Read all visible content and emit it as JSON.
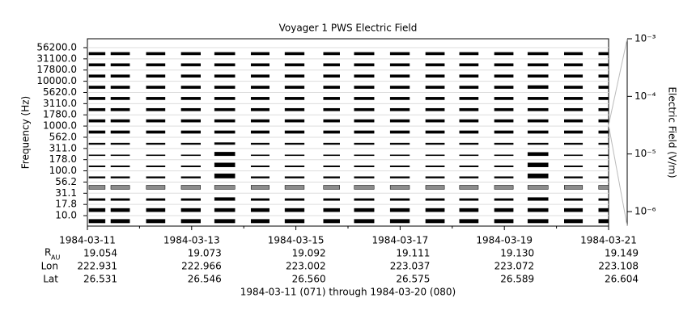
{
  "chart_data": {
    "type": "stacked-spectrum",
    "title": "Voyager 1 PWS Electric Field",
    "y_label": "Frequency (Hz)",
    "y2_label": "Electric Field (V/m)",
    "footer": "1984-03-11 (071) through 1984-03-20 (080)",
    "xlim": [
      0,
      10
    ],
    "xticks": [
      {
        "value": 0,
        "label": "1984-03-11"
      },
      {
        "value": 2,
        "label": "1984-03-13"
      },
      {
        "value": 4,
        "label": "1984-03-15"
      },
      {
        "value": 6,
        "label": "1984-03-17"
      },
      {
        "value": 8,
        "label": "1984-03-19"
      },
      {
        "value": 10,
        "label": "1984-03-21"
      }
    ],
    "xminor": [
      1,
      3,
      5,
      7,
      9
    ],
    "y2lim": [
      5.6e-07,
      0.001
    ],
    "y2scale": "log",
    "y2ticks": [
      {
        "value": 1e-06,
        "label": "10⁻⁶"
      },
      {
        "value": 1e-05,
        "label": "10⁻⁵"
      },
      {
        "value": 0.0001,
        "label": "10⁻⁴"
      },
      {
        "value": 0.001,
        "label": "10⁻³"
      }
    ],
    "segments": [
      [
        0.03,
        0.34
      ],
      [
        0.45,
        0.81
      ],
      [
        1.13,
        1.49
      ],
      [
        1.8,
        2.17
      ],
      [
        2.44,
        2.83
      ],
      [
        3.14,
        3.49
      ],
      [
        3.79,
        4.16
      ],
      [
        4.53,
        4.84
      ],
      [
        5.12,
        5.5
      ],
      [
        5.81,
        6.18
      ],
      [
        6.49,
        6.85
      ],
      [
        7.14,
        7.5
      ],
      [
        7.81,
        8.17
      ],
      [
        8.45,
        8.84
      ],
      [
        9.15,
        9.5
      ],
      [
        9.81,
        10.0
      ]
    ],
    "series": [
      {
        "name": "56200.0",
        "color": "#000000",
        "values": [
          3e-06,
          3e-06,
          3e-06,
          3e-06,
          3e-06,
          3e-06,
          3e-06,
          3e-06,
          3e-06,
          3e-06,
          3e-06,
          3e-06,
          3e-06,
          3e-06,
          3e-06,
          3e-06
        ]
      },
      {
        "name": "31100.0",
        "color": "#000000",
        "values": [
          3e-06,
          3e-06,
          3e-06,
          3e-06,
          3e-06,
          3e-06,
          3e-06,
          3e-06,
          3e-06,
          3e-06,
          3e-06,
          3e-06,
          3e-06,
          3e-06,
          3e-06,
          3e-06
        ]
      },
      {
        "name": "17800.0",
        "color": "#000000",
        "values": [
          3e-06,
          3e-06,
          3e-06,
          3e-06,
          3e-06,
          3e-06,
          3e-06,
          3e-06,
          3e-06,
          3e-06,
          3e-06,
          3e-06,
          3e-06,
          3e-06,
          3e-06,
          3e-06
        ]
      },
      {
        "name": "10000.0",
        "color": "#000000",
        "values": [
          3e-06,
          3e-06,
          3e-06,
          3e-06,
          3e-06,
          3e-06,
          3e-06,
          3e-06,
          3e-06,
          3e-06,
          3e-06,
          3e-06,
          3e-06,
          4e-06,
          3e-06,
          3e-06
        ]
      },
      {
        "name": "5620.0",
        "color": "#000000",
        "values": [
          3e-06,
          3e-06,
          3e-06,
          3e-06,
          3e-06,
          3e-06,
          3e-06,
          3e-06,
          3e-06,
          3e-06,
          3e-06,
          3e-06,
          3e-06,
          3e-06,
          3e-06,
          3e-06
        ]
      },
      {
        "name": "3110.0",
        "color": "#000000",
        "values": [
          3e-06,
          3e-06,
          3e-06,
          3e-06,
          3e-06,
          3e-06,
          3e-06,
          3e-06,
          3e-06,
          3e-06,
          3e-06,
          3e-06,
          3e-06,
          3e-06,
          3e-06,
          3e-06
        ]
      },
      {
        "name": "1780.0",
        "color": "#000000",
        "values": [
          3e-06,
          3e-06,
          3e-06,
          3e-06,
          3e-06,
          3e-06,
          3e-06,
          3e-06,
          3e-06,
          3e-06,
          3e-06,
          3e-06,
          3e-06,
          3e-06,
          3e-06,
          3e-06
        ]
      },
      {
        "name": "1000.0",
        "color": "#000000",
        "values": [
          3e-06,
          3e-06,
          3e-06,
          3e-06,
          3e-06,
          3e-06,
          3e-06,
          3e-06,
          3e-06,
          3e-06,
          3e-06,
          3e-06,
          3e-06,
          3e-06,
          3e-06,
          3e-06
        ]
      },
      {
        "name": "562.0",
        "color": "#000000",
        "values": [
          1.5e-06,
          1.5e-06,
          1.5e-06,
          1.5e-06,
          2e-06,
          1.5e-06,
          1.5e-06,
          1.5e-06,
          1.5e-06,
          1.5e-06,
          1.5e-06,
          1.5e-06,
          1.5e-06,
          1.5e-06,
          1.5e-06,
          1.5e-06
        ]
      },
      {
        "name": "311.0",
        "color": "#000000",
        "values": [
          1e-06,
          1e-06,
          1e-06,
          1e-06,
          6e-06,
          1e-06,
          1e-06,
          1e-06,
          1e-06,
          1e-06,
          1e-06,
          1e-06,
          1e-06,
          5e-06,
          1e-06,
          1e-06
        ]
      },
      {
        "name": "178.0",
        "color": "#000000",
        "values": [
          1.2e-06,
          1.2e-06,
          1.2e-06,
          1.2e-06,
          8e-06,
          1.2e-06,
          1.2e-06,
          1.2e-06,
          1.2e-06,
          1.2e-06,
          1.2e-06,
          1.2e-06,
          1.2e-06,
          8e-06,
          1.2e-06,
          1.2e-06
        ]
      },
      {
        "name": "100.0",
        "color": "#000000",
        "values": [
          1.5e-06,
          1.5e-06,
          1.5e-06,
          1.5e-06,
          1e-05,
          1.5e-06,
          1.5e-06,
          1.5e-06,
          1.5e-06,
          1.5e-06,
          1.5e-06,
          1.5e-06,
          1.5e-06,
          1e-05,
          1.5e-06,
          1.5e-06
        ]
      },
      {
        "name": "56.2",
        "color": "#8c8c8c",
        "values": [
          8e-06,
          8e-06,
          8e-06,
          8e-06,
          8e-06,
          8e-06,
          8e-06,
          8e-06,
          8e-06,
          8e-06,
          8e-06,
          8e-06,
          8e-06,
          8e-06,
          8e-06,
          8e-06
        ]
      },
      {
        "name": "31.1",
        "color": "#000000",
        "values": [
          2e-06,
          2e-06,
          2e-06,
          2e-06,
          4e-06,
          2e-06,
          2e-06,
          2e-06,
          2e-06,
          2e-06,
          2e-06,
          2e-06,
          2e-06,
          4e-06,
          2e-06,
          2e-06
        ]
      },
      {
        "name": "17.8",
        "color": "#000000",
        "values": [
          5e-06,
          5e-06,
          5e-06,
          5e-06,
          5e-06,
          5e-06,
          5e-06,
          5e-06,
          5e-06,
          5e-06,
          5e-06,
          5e-06,
          5e-06,
          5e-06,
          5e-06,
          5e-06
        ]
      },
      {
        "name": "10.0",
        "color": "#000000",
        "values": [
          6e-06,
          6e-06,
          6e-06,
          6e-06,
          6e-06,
          6e-06,
          6e-06,
          6e-06,
          6e-06,
          6e-06,
          6e-06,
          6e-06,
          6e-06,
          6e-06,
          6e-06,
          6e-06
        ]
      }
    ],
    "ephemeris": [
      {
        "label": "R",
        "sub": "AU",
        "values": [
          "19.054",
          "19.073",
          "19.092",
          "19.111",
          "19.130",
          "19.149"
        ]
      },
      {
        "label": "Lon",
        "values": [
          "222.931",
          "222.966",
          "223.002",
          "223.037",
          "223.072",
          "223.108"
        ]
      },
      {
        "label": "Lat",
        "values": [
          "26.531",
          "26.546",
          "26.560",
          "26.575",
          "26.589",
          "26.604"
        ]
      }
    ]
  }
}
